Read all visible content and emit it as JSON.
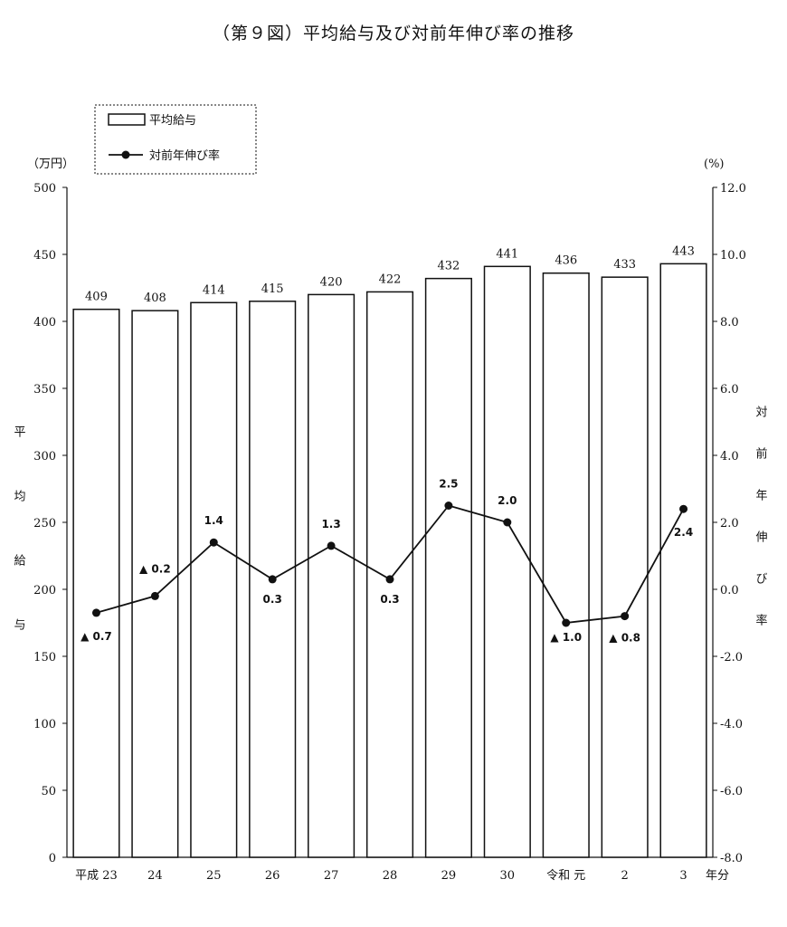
{
  "chart_data": {
    "type": "bar",
    "title": "（第９図）平均給与及び対前年伸び率の推移",
    "categories": [
      "平成 23",
      "24",
      "25",
      "26",
      "27",
      "28",
      "29",
      "30",
      "令和 元",
      "2",
      "3"
    ],
    "x_unit": "年分",
    "left_axis": {
      "unit": "（万円）",
      "label": "平均給与",
      "ylim": [
        0,
        500
      ],
      "ticks": [
        "0",
        "50",
        "100",
        "150",
        "200",
        "250",
        "300",
        "350",
        "400",
        "450",
        "500"
      ]
    },
    "right_axis": {
      "unit": "(%)",
      "label": "対前年伸び率",
      "ylim": [
        -8.0,
        12.0
      ],
      "ticks": [
        "-8.0",
        "-6.0",
        "-4.0",
        "-2.0",
        "0.0",
        "2.0",
        "4.0",
        "6.0",
        "8.0",
        "10.0",
        "12.0"
      ]
    },
    "series": [
      {
        "name": "平均給与",
        "type": "bar",
        "axis": "left",
        "values": [
          409,
          408,
          414,
          415,
          420,
          422,
          432,
          441,
          436,
          433,
          443
        ],
        "labels": [
          "409",
          "408",
          "414",
          "415",
          "420",
          "422",
          "432",
          "441",
          "436",
          "433",
          "443"
        ]
      },
      {
        "name": "対前年伸び率",
        "type": "line",
        "axis": "right",
        "values": [
          -0.7,
          -0.2,
          1.4,
          0.3,
          1.3,
          0.3,
          2.5,
          2.0,
          -1.0,
          -0.8,
          2.4
        ],
        "labels": [
          "▲ 0.7",
          "▲ 0.2",
          "1.4",
          "0.3",
          "1.3",
          "0.3",
          "2.5",
          "2.0",
          "▲ 1.0",
          "▲ 0.8",
          "2.4"
        ]
      }
    ],
    "grid": false,
    "legend_position": "top-left"
  }
}
